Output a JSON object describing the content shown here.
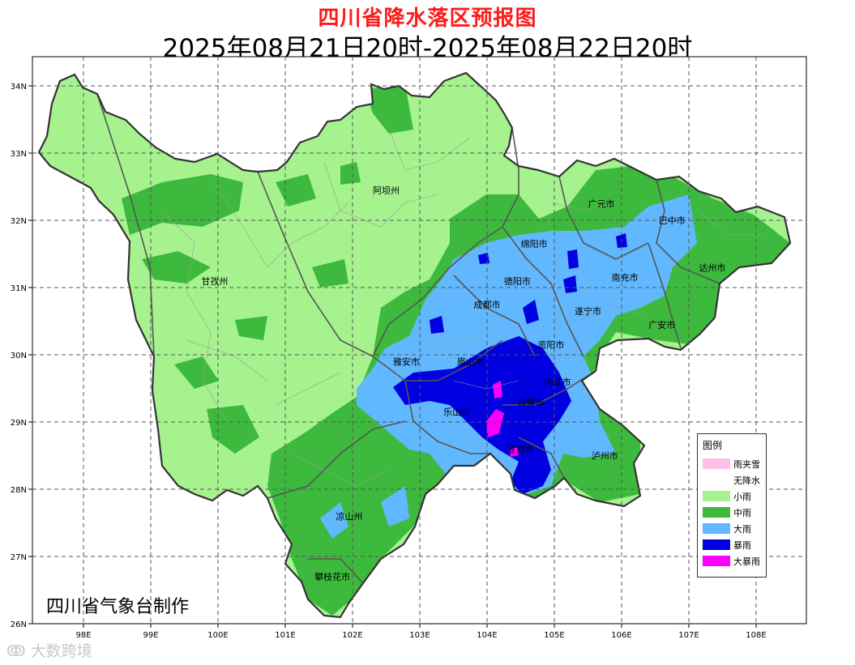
{
  "title": "四川省降水落区预报图",
  "subtitle": "2025年08月21日20时-2025年08月22日20时",
  "credit": "四川省气象台制作",
  "watermark": "大数跨境",
  "lat_ticks": [
    "34N",
    "33N",
    "32N",
    "31N",
    "30N",
    "29N",
    "28N",
    "27N",
    "26N"
  ],
  "lon_ticks": [
    "98E",
    "99E",
    "100E",
    "101E",
    "102E",
    "103E",
    "104E",
    "105E",
    "106E",
    "107E",
    "108E"
  ],
  "cities": [
    {
      "name": "阿坝州",
      "lon": 102.5,
      "lat": 32.4
    },
    {
      "name": "甘孜州",
      "lon": 99.95,
      "lat": 31.05
    },
    {
      "name": "广元市",
      "lon": 105.7,
      "lat": 32.2
    },
    {
      "name": "巴中市",
      "lon": 106.75,
      "lat": 31.95
    },
    {
      "name": "绵阳市",
      "lon": 104.7,
      "lat": 31.6
    },
    {
      "name": "达州市",
      "lon": 107.35,
      "lat": 31.25
    },
    {
      "name": "德阳市",
      "lon": 104.45,
      "lat": 31.05
    },
    {
      "name": "南充市",
      "lon": 106.05,
      "lat": 31.1
    },
    {
      "name": "成都市",
      "lon": 104.0,
      "lat": 30.7
    },
    {
      "name": "遂宁市",
      "lon": 105.5,
      "lat": 30.6
    },
    {
      "name": "广安市",
      "lon": 106.6,
      "lat": 30.4
    },
    {
      "name": "资阳市",
      "lon": 104.95,
      "lat": 30.1
    },
    {
      "name": "雅安市",
      "lon": 102.8,
      "lat": 29.85
    },
    {
      "name": "眉山市",
      "lon": 103.75,
      "lat": 29.85
    },
    {
      "name": "内江市",
      "lon": 105.05,
      "lat": 29.55
    },
    {
      "name": "乐山市",
      "lon": 103.55,
      "lat": 29.1
    },
    {
      "name": "自贡市",
      "lon": 104.65,
      "lat": 29.25
    },
    {
      "name": "宜宾市",
      "lon": 104.5,
      "lat": 28.55
    },
    {
      "name": "泸州市",
      "lon": 105.75,
      "lat": 28.45
    },
    {
      "name": "凉山州",
      "lon": 101.95,
      "lat": 27.55
    },
    {
      "name": "攀枝花市",
      "lon": 101.7,
      "lat": 26.65
    }
  ],
  "legend": {
    "title": "图例",
    "items": [
      {
        "label": "雨夹雪",
        "color": "#ffbfe8"
      },
      {
        "label": "无降水",
        "color": "#ffffff"
      },
      {
        "label": "小雨",
        "color": "#a6f28f"
      },
      {
        "label": "中雨",
        "color": "#3dba3d"
      },
      {
        "label": "大雨",
        "color": "#61b8ff"
      },
      {
        "label": "暴雨",
        "color": "#0000e1"
      },
      {
        "label": "大暴雨",
        "color": "#fa00fa"
      }
    ]
  }
}
